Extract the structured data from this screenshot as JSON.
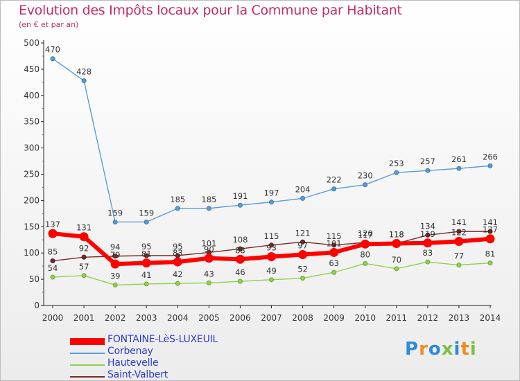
{
  "chart_data": {
    "type": "line",
    "title": "Evolution des Impôts locaux pour la Commune par Habitant",
    "subtitle": "(en € et par an)",
    "x": [
      "2000",
      "2001",
      "2002",
      "2003",
      "2004",
      "2005",
      "2006",
      "2007",
      "2008",
      "2009",
      "2010",
      "2011",
      "2012",
      "2013",
      "2014"
    ],
    "ylim": [
      0,
      500
    ],
    "yticks": [
      0,
      50,
      100,
      150,
      200,
      250,
      300,
      350,
      400,
      450,
      500
    ],
    "grid": false,
    "legend_position": "bottom-left",
    "series": [
      {
        "name": "FONTAINE-LèS-LUXEUIL",
        "color": "#ff0000",
        "values": [
          137,
          131,
          79,
          81,
          83,
          90,
          88,
          93,
          97,
          101,
          117,
          118,
          119,
          122,
          127
        ]
      },
      {
        "name": "Corbenay",
        "color": "#5b9bd5",
        "values": [
          470,
          428,
          159,
          159,
          185,
          185,
          191,
          197,
          204,
          222,
          230,
          253,
          257,
          261,
          266
        ]
      },
      {
        "name": "Hautevelle",
        "color": "#92d050",
        "values": [
          54,
          57,
          39,
          41,
          42,
          43,
          46,
          49,
          52,
          63,
          80,
          70,
          83,
          77,
          81
        ]
      },
      {
        "name": "Saint-Valbert",
        "color": "#7b2a2a",
        "values": [
          85,
          92,
          94,
          95,
          95,
          101,
          108,
          115,
          121,
          115,
          120,
          118,
          134,
          141,
          141
        ]
      }
    ]
  },
  "branding": {
    "logo_text": [
      "P",
      "r",
      "o",
      "x",
      "i",
      "t",
      "i"
    ],
    "logo_colors": [
      "#2e8bd8",
      "#f28c1e",
      "#2e8bd8",
      "#7ac143",
      "#2e8bd8",
      "#f28c1e",
      "#7ac143"
    ]
  }
}
